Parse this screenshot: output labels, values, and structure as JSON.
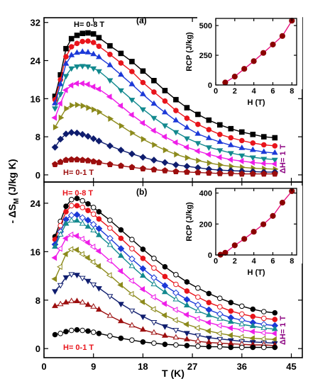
{
  "colors": {
    "series": [
      "#000000",
      "#e8141b",
      "#1c39d8",
      "#12898e",
      "#ee1ee8",
      "#8c8a1c",
      "#0f1d6e",
      "#9c0e0e"
    ],
    "hollow_b": "#f41535",
    "annot": "#8b0080",
    "rcp_line": "#e8137f",
    "rcp_marker": "#8b0000"
  },
  "chart_data": [
    {
      "id": "a",
      "type": "line",
      "panel_label": "(a)",
      "xlabel": "T (K)",
      "ylabel": "- ΔS",
      "ylabel_sub": "M",
      "ylabel_unit": " (J/kg K)",
      "xlim": [
        0,
        47
      ],
      "ylim": [
        -1.5,
        33
      ],
      "yticks": [
        0,
        8,
        16,
        24,
        32
      ],
      "xticks": [
        0,
        9,
        18,
        27,
        36,
        45
      ],
      "grid": false,
      "annotations": {
        "top": "H= 0-8 T",
        "bottom": "H= 0-1 T",
        "side": "ΔH= 1 T"
      },
      "x": [
        2,
        3,
        4,
        5,
        6,
        7,
        8,
        9,
        10,
        12,
        14,
        16,
        18,
        20,
        22,
        24,
        26,
        28,
        30,
        32,
        34,
        36,
        38,
        40,
        42
      ],
      "series": [
        {
          "marker": "square",
          "values": [
            16.5,
            21.0,
            26.5,
            28.6,
            29.3,
            29.7,
            29.8,
            29.6,
            28.8,
            27.1,
            25.5,
            23.8,
            21.8,
            19.8,
            17.7,
            15.8,
            14.1,
            12.7,
            11.5,
            10.5,
            9.7,
            9.0,
            8.5,
            8.0,
            7.8
          ]
        },
        {
          "marker": "circle",
          "values": [
            15.8,
            20.0,
            24.8,
            26.9,
            27.6,
            28.0,
            28.1,
            27.8,
            27.0,
            25.3,
            23.5,
            21.7,
            19.4,
            17.4,
            15.5,
            13.5,
            11.9,
            10.6,
            9.5,
            8.5,
            7.8,
            7.2,
            6.7,
            6.3,
            6.1
          ]
        },
        {
          "marker": "triangle-up",
          "values": [
            15.0,
            19.0,
            23.3,
            25.1,
            25.6,
            25.8,
            25.7,
            25.3,
            24.7,
            23.0,
            21.0,
            19.0,
            16.9,
            14.9,
            13.1,
            11.4,
            9.9,
            8.6,
            7.7,
            6.9,
            6.2,
            5.6,
            5.2,
            4.8,
            4.6
          ]
        },
        {
          "marker": "triangle-down",
          "values": [
            14.0,
            17.0,
            20.8,
            22.4,
            22.8,
            22.9,
            22.8,
            22.4,
            21.8,
            19.9,
            17.8,
            15.8,
            13.8,
            12.0,
            10.4,
            9.0,
            7.7,
            6.7,
            5.8,
            5.2,
            4.6,
            4.1,
            3.7,
            3.4,
            3.2
          ]
        },
        {
          "marker": "triangle-left",
          "values": [
            12.0,
            15.0,
            17.8,
            18.8,
            19.2,
            19.2,
            19.0,
            18.5,
            18.0,
            16.4,
            14.5,
            12.6,
            10.9,
            9.3,
            8.0,
            6.8,
            5.8,
            5.0,
            4.3,
            3.7,
            3.2,
            2.9,
            2.6,
            2.4,
            2.3
          ]
        },
        {
          "marker": "triangle-right",
          "values": [
            10.0,
            12.0,
            13.9,
            14.6,
            14.7,
            14.5,
            14.1,
            13.7,
            13.2,
            11.8,
            10.3,
            8.8,
            7.5,
            6.3,
            5.2,
            4.3,
            3.6,
            3.0,
            2.5,
            2.1,
            1.8,
            1.6,
            1.4,
            1.3,
            1.2
          ]
        },
        {
          "marker": "diamond",
          "values": [
            5.8,
            7.5,
            8.6,
            8.9,
            8.8,
            8.5,
            8.1,
            7.6,
            7.1,
            6.1,
            5.2,
            4.4,
            3.7,
            3.1,
            2.6,
            2.1,
            1.8,
            1.5,
            1.2,
            1.0,
            0.9,
            0.8,
            0.7,
            0.6,
            0.6
          ]
        },
        {
          "marker": "pentagon",
          "values": [
            2.2,
            2.7,
            3.1,
            3.2,
            3.2,
            3.1,
            3.0,
            2.8,
            2.6,
            2.2,
            1.9,
            1.6,
            1.3,
            1.1,
            0.9,
            0.7,
            0.6,
            0.5,
            0.4,
            0.3,
            0.3,
            0.2,
            0.2,
            0.2,
            0.2
          ]
        }
      ]
    },
    {
      "id": "b",
      "type": "line",
      "panel_label": "(b)",
      "xlabel": "T (K)",
      "xlim": [
        0,
        47
      ],
      "ylim": [
        -1.5,
        27.5
      ],
      "yticks": [
        0,
        8,
        16,
        24
      ],
      "xticks": [
        0,
        9,
        18,
        27,
        36,
        45
      ],
      "grid": false,
      "annotations": {
        "top": "H= 0-8 T",
        "bottom": "H= 0-1 T",
        "side": "ΔH= 1 T"
      },
      "x": [
        2,
        3,
        4,
        5,
        6,
        7,
        8,
        9,
        10,
        12,
        14,
        16,
        18,
        20,
        22,
        24,
        26,
        28,
        30,
        32,
        34,
        36,
        38,
        40,
        42
      ],
      "series": [
        {
          "marker": "circle",
          "values": [
            18.5,
            21.0,
            23.5,
            24.6,
            24.8,
            24.4,
            23.9,
            23.3,
            22.6,
            21.2,
            19.6,
            18.0,
            16.4,
            14.9,
            13.5,
            12.2,
            11.0,
            10.0,
            9.1,
            8.3,
            7.6,
            7.0,
            6.5,
            6.1,
            5.9
          ]
        },
        {
          "marker": "circle",
          "values": [
            18.0,
            20.3,
            22.6,
            23.6,
            23.6,
            23.3,
            22.8,
            22.2,
            21.4,
            19.9,
            18.2,
            16.5,
            14.9,
            13.3,
            11.9,
            10.6,
            9.5,
            8.5,
            7.6,
            6.9,
            6.2,
            5.7,
            5.3,
            5.0,
            4.8
          ]
        },
        {
          "marker": "diamond",
          "values": [
            17.2,
            19.3,
            21.3,
            22.0,
            22.1,
            21.6,
            21.2,
            20.5,
            19.8,
            18.2,
            16.5,
            14.8,
            13.2,
            11.7,
            10.4,
            9.2,
            8.1,
            7.2,
            6.4,
            5.7,
            5.1,
            4.7,
            4.3,
            4.0,
            3.8
          ]
        },
        {
          "marker": "triangle-up",
          "values": [
            16.8,
            18.8,
            20.6,
            21.1,
            21.1,
            20.6,
            20.1,
            19.5,
            18.7,
            17.1,
            15.3,
            13.6,
            12.0,
            10.6,
            9.3,
            8.1,
            7.1,
            6.2,
            5.5,
            4.9,
            4.4,
            4.0,
            3.7,
            3.4,
            3.2
          ]
        },
        {
          "marker": "triangle-left",
          "values": [
            15.0,
            16.5,
            18.2,
            18.8,
            18.6,
            18.1,
            17.5,
            16.8,
            16.1,
            14.5,
            12.8,
            11.2,
            9.8,
            8.5,
            7.4,
            6.4,
            5.6,
            4.9,
            4.3,
            3.8,
            3.4,
            3.1,
            2.8,
            2.6,
            2.5
          ]
        },
        {
          "marker": "triangle-left",
          "values": [
            11.5,
            13.5,
            15.6,
            16.4,
            16.3,
            15.6,
            15.0,
            14.3,
            13.6,
            12.1,
            10.5,
            9.0,
            7.7,
            6.5,
            5.5,
            4.7,
            4.0,
            3.4,
            2.9,
            2.5,
            2.2,
            1.9,
            1.7,
            1.6,
            1.5
          ]
        },
        {
          "marker": "triangle-down",
          "values": [
            9.5,
            10.5,
            11.8,
            12.3,
            12.2,
            11.7,
            11.2,
            10.6,
            10.0,
            8.7,
            7.4,
            6.3,
            5.3,
            4.4,
            3.7,
            3.1,
            2.6,
            2.2,
            1.8,
            1.6,
            1.4,
            1.2,
            1.1,
            1.0,
            0.9
          ]
        },
        {
          "marker": "triangle-up",
          "values": [
            7.0,
            7.3,
            7.6,
            7.8,
            7.8,
            7.6,
            7.2,
            6.9,
            6.4,
            5.4,
            4.5,
            3.8,
            3.1,
            2.6,
            2.1,
            1.8,
            1.5,
            1.2,
            1.0,
            0.9,
            0.8,
            0.7,
            0.6,
            0.6,
            0.5
          ]
        },
        {
          "marker": "circle",
          "values": [
            2.3,
            2.5,
            2.8,
            3.0,
            3.1,
            3.0,
            2.9,
            2.7,
            2.5,
            2.1,
            1.7,
            1.4,
            1.1,
            0.9,
            0.7,
            0.6,
            0.5,
            0.4,
            0.3,
            0.3,
            0.2,
            0.2,
            0.2,
            0.2,
            0.2
          ]
        }
      ]
    },
    {
      "id": "inset_a",
      "type": "line",
      "xlabel": "H (T)",
      "ylabel": "RCP (J/kg)",
      "xlim": [
        0,
        8.5
      ],
      "ylim": [
        0,
        560
      ],
      "xticks": [
        0,
        2,
        4,
        6,
        8
      ],
      "yticks": [
        0,
        250,
        500
      ],
      "x": [
        1,
        2,
        3,
        4,
        5,
        6,
        7,
        8
      ],
      "values": [
        21,
        71,
        136,
        201,
        270,
        340,
        412,
        541
      ]
    },
    {
      "id": "inset_b",
      "type": "line",
      "xlabel": "H (T)",
      "ylabel": "RCP (J/kg)",
      "xlim": [
        0,
        8.5
      ],
      "ylim": [
        0,
        430
      ],
      "xticks": [
        0,
        2,
        4,
        6,
        8
      ],
      "yticks": [
        0,
        200,
        400
      ],
      "x": [
        0.5,
        1,
        2,
        3,
        4,
        5,
        6,
        7,
        8
      ],
      "values": [
        2,
        14,
        62,
        104,
        150,
        198,
        252,
        338,
        412
      ]
    }
  ]
}
